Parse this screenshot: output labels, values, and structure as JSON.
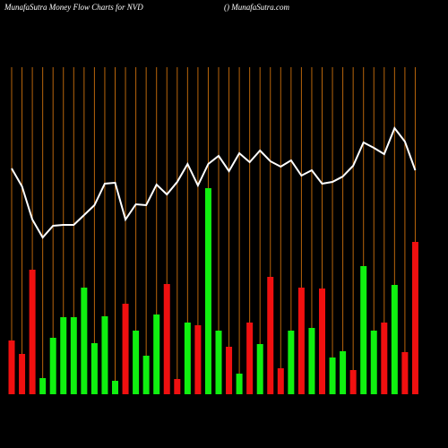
{
  "chart_data": {
    "type": "bar_line",
    "title": "MunafaSutra  Money Flow  Charts for NVD",
    "source": "() MunafaSutra.com",
    "ylim": [
      0,
      365
    ],
    "grid_color": "#b8650b",
    "bars": {
      "values": [
        60,
        45,
        139,
        18,
        63,
        86,
        86,
        119,
        57,
        87,
        15,
        101,
        71,
        43,
        89,
        123,
        17,
        80,
        77,
        230,
        71,
        53,
        23,
        80,
        56,
        131,
        29,
        71,
        119,
        74,
        118,
        41,
        48,
        27,
        143,
        71,
        80,
        122,
        47,
        170
      ],
      "colors": [
        "#f01010",
        "#f01010",
        "#f01010",
        "#10f010",
        "#10f010",
        "#10f010",
        "#10f010",
        "#10f010",
        "#10f010",
        "#10f010",
        "#10f010",
        "#f01010",
        "#10f010",
        "#10f010",
        "#10f010",
        "#f01010",
        "#f01010",
        "#10f010",
        "#f01010",
        "#10f010",
        "#10f010",
        "#f01010",
        "#10f010",
        "#f01010",
        "#10f010",
        "#f01010",
        "#f01010",
        "#10f010",
        "#f01010",
        "#10f010",
        "#f01010",
        "#10f010",
        "#10f010",
        "#f01010",
        "#10f010",
        "#10f010",
        "#f01010",
        "#10f010",
        "#f01010",
        "#f01010"
      ]
    },
    "line": {
      "color": "#ffffff",
      "values": [
        252,
        232,
        195,
        175,
        188,
        189,
        189,
        200,
        211,
        235,
        236,
        195,
        212,
        211,
        234,
        223,
        237,
        257,
        233,
        257,
        266,
        249,
        269,
        259,
        272,
        260,
        254,
        261,
        244,
        250,
        235,
        237,
        243,
        255,
        281,
        275,
        268,
        297,
        282,
        250
      ]
    }
  }
}
